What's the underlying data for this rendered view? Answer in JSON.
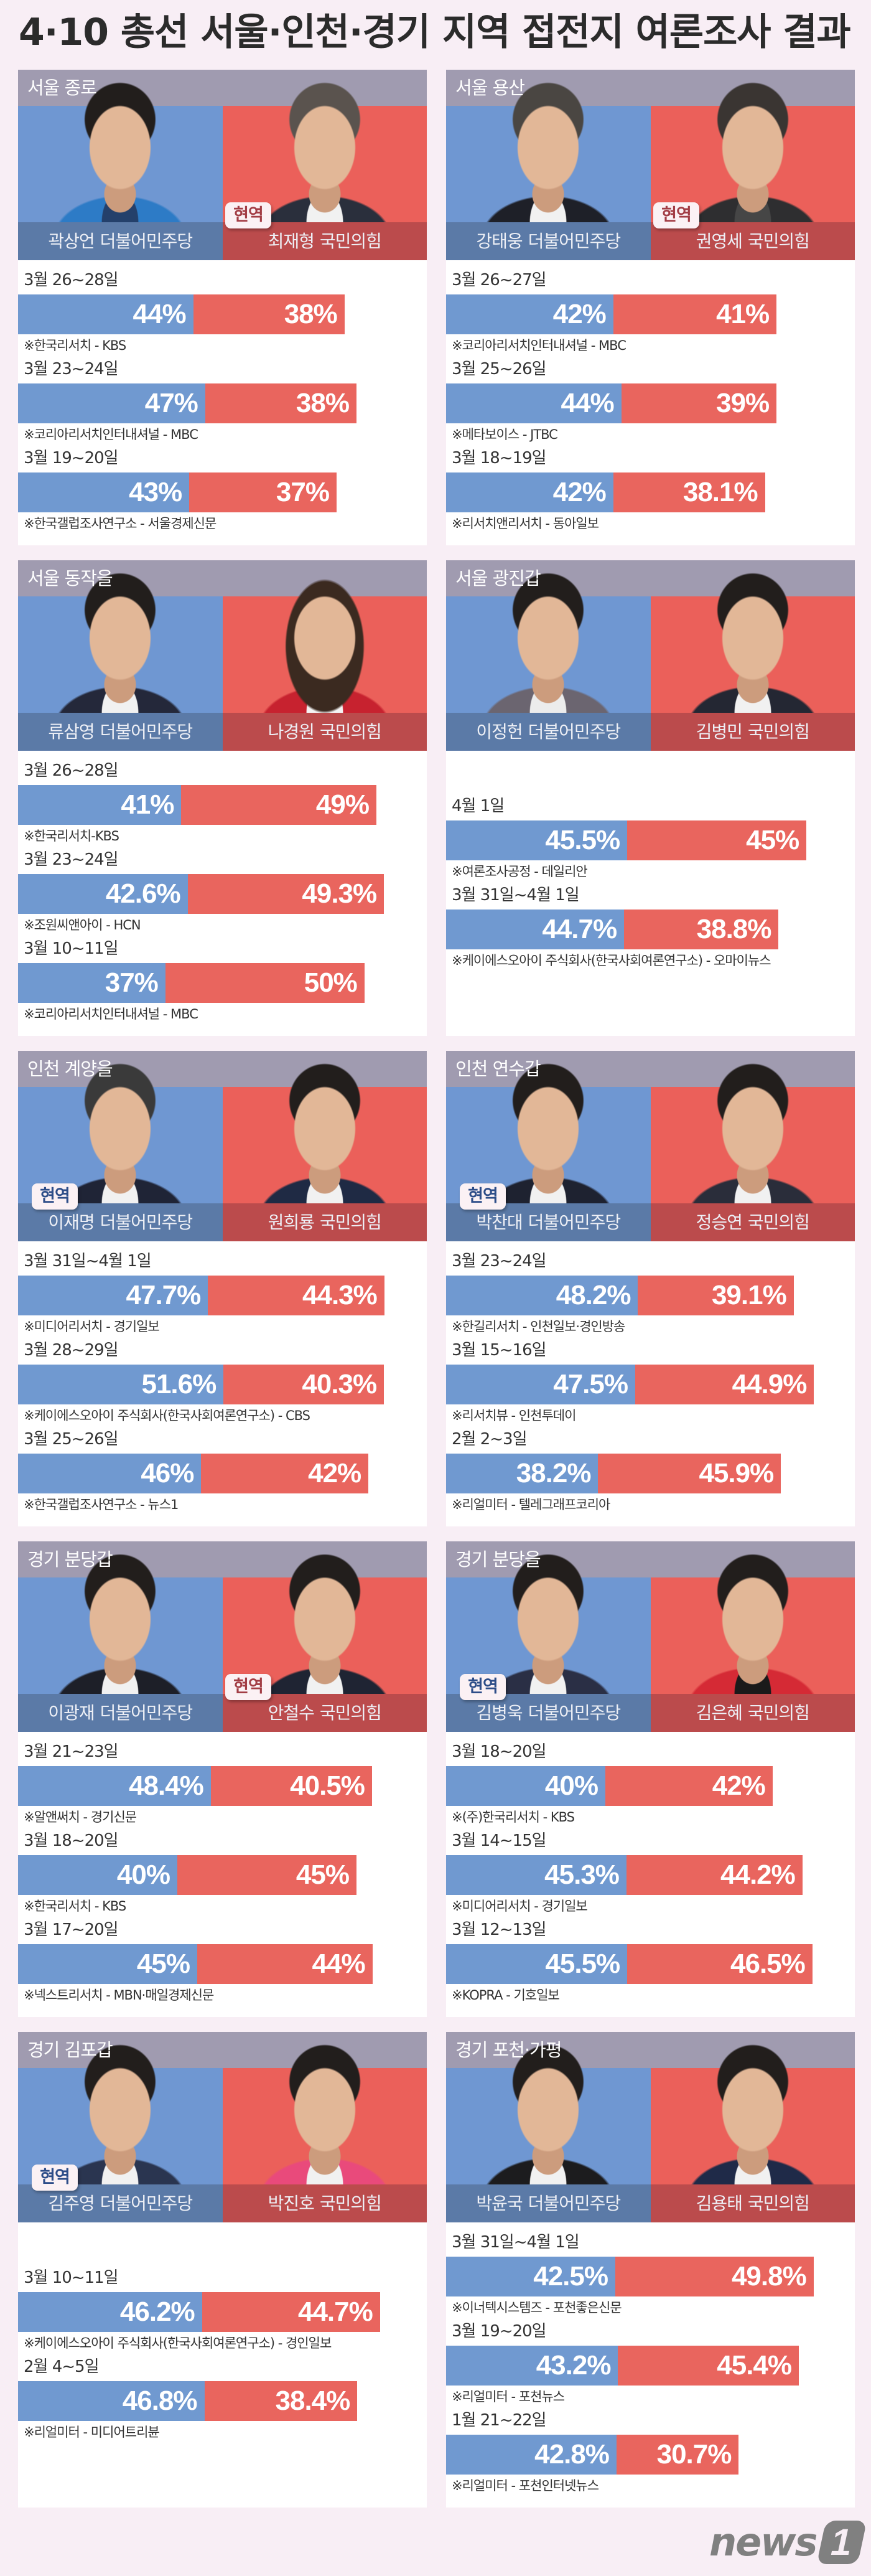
{
  "title": "4·10 총선 서울·인천·경기 지역 접전지 여론조사 결과",
  "badge_label": "현역",
  "logo": {
    "wordmark": "news",
    "numeral": "1"
  },
  "chart_data": [
    {
      "type": "bar",
      "orientation": "horizontal-stacked",
      "title": "서울 종로",
      "categories": [
        "3월 26~28일",
        "3월 23~24일",
        "3월 19~20일"
      ],
      "series": [
        {
          "name": "곽상언 더불어민주당",
          "candidate": "곽상언",
          "party": "더불어민주당",
          "incumbent": false,
          "color": "#7099d0",
          "values": [
            44,
            47,
            43
          ],
          "labels": [
            "44%",
            "47%",
            "43%"
          ]
        },
        {
          "name": "최재형 국민의힘",
          "candidate": "최재형",
          "party": "국민의힘",
          "incumbent": true,
          "color": "#e9655e",
          "values": [
            38,
            38,
            37
          ],
          "labels": [
            "38%",
            "38%",
            "37%"
          ]
        }
      ],
      "sources": [
        "※한국리서치 - KBS",
        "※코리아리서치인터내셔널 - MBC",
        "※한국갤럽조사연구소 - 서울경제신문"
      ]
    },
    {
      "type": "bar",
      "orientation": "horizontal-stacked",
      "title": "서울 용산",
      "categories": [
        "3월 26~27일",
        "3월 25~26일",
        "3월 18~19일"
      ],
      "series": [
        {
          "name": "강태웅 더불어민주당",
          "candidate": "강태웅",
          "party": "더불어민주당",
          "incumbent": false,
          "color": "#7099d0",
          "values": [
            42,
            44,
            42
          ],
          "labels": [
            "42%",
            "44%",
            "42%"
          ]
        },
        {
          "name": "권영세 국민의힘",
          "candidate": "권영세",
          "party": "국민의힘",
          "incumbent": true,
          "color": "#e9655e",
          "values": [
            41,
            39,
            38.1
          ],
          "labels": [
            "41%",
            "39%",
            "38.1%"
          ]
        }
      ],
      "sources": [
        "※코리아리서치인터내셔널 - MBC",
        "※메타보이스 - JTBC",
        "※리서치앤리서치 - 동아일보"
      ]
    },
    {
      "type": "bar",
      "orientation": "horizontal-stacked",
      "title": "서울 동작을",
      "categories": [
        "3월 26~28일",
        "3월 23~24일",
        "3월 10~11일"
      ],
      "series": [
        {
          "name": "류삼영 더불어민주당",
          "candidate": "류삼영",
          "party": "더불어민주당",
          "incumbent": false,
          "color": "#7099d0",
          "values": [
            41,
            42.6,
            37
          ],
          "labels": [
            "41%",
            "42.6%",
            "37%"
          ]
        },
        {
          "name": "나경원 국민의힘",
          "candidate": "나경원",
          "party": "국민의힘",
          "incumbent": false,
          "color": "#e9655e",
          "values": [
            49,
            49.3,
            50
          ],
          "labels": [
            "49%",
            "49.3%",
            "50%"
          ]
        }
      ],
      "sources": [
        "※한국리서치-KBS",
        "※조원씨앤아이 - HCN",
        "※코리아리서치인터내셔널 - MBC"
      ]
    },
    {
      "type": "bar",
      "orientation": "horizontal-stacked",
      "title": "서울 광진갑",
      "categories": [
        "4월 1일",
        "3월 31일~4월 1일"
      ],
      "series": [
        {
          "name": "이정헌 더불어민주당",
          "candidate": "이정헌",
          "party": "더불어민주당",
          "incumbent": false,
          "color": "#7099d0",
          "values": [
            45.5,
            44.7
          ],
          "labels": [
            "45.5%",
            "44.7%"
          ]
        },
        {
          "name": "김병민 국민의힘",
          "candidate": "김병민",
          "party": "국민의힘",
          "incumbent": false,
          "color": "#e9655e",
          "values": [
            45,
            38.8
          ],
          "labels": [
            "45%",
            "38.8%"
          ]
        }
      ],
      "sources": [
        "※여론조사공정 - 데일리안",
        "※케이에스오아이 주식회사(한국사회여론연구소) - 오마이뉴스"
      ]
    },
    {
      "type": "bar",
      "orientation": "horizontal-stacked",
      "title": "인천 계양을",
      "categories": [
        "3월 31일~4월 1일",
        "3월 28~29일",
        "3월 25~26일"
      ],
      "series": [
        {
          "name": "이재명 더불어민주당",
          "candidate": "이재명",
          "party": "더불어민주당",
          "incumbent": true,
          "color": "#7099d0",
          "values": [
            47.7,
            51.6,
            46
          ],
          "labels": [
            "47.7%",
            "51.6%",
            "46%"
          ]
        },
        {
          "name": "원희룡 국민의힘",
          "candidate": "원희룡",
          "party": "국민의힘",
          "incumbent": false,
          "color": "#e9655e",
          "values": [
            44.3,
            40.3,
            42
          ],
          "labels": [
            "44.3%",
            "40.3%",
            "42%"
          ]
        }
      ],
      "sources": [
        "※미디어리서치 - 경기일보",
        "※케이에스오아이 주식회사(한국사회여론연구소) - CBS",
        "※한국갤럽조사연구소 - 뉴스1"
      ]
    },
    {
      "type": "bar",
      "orientation": "horizontal-stacked",
      "title": "인천 연수갑",
      "categories": [
        "3월 23~24일",
        "3월 15~16일",
        "2월 2~3일"
      ],
      "series": [
        {
          "name": "박찬대 더불어민주당",
          "candidate": "박찬대",
          "party": "더불어민주당",
          "incumbent": true,
          "color": "#7099d0",
          "values": [
            48.2,
            47.5,
            38.2
          ],
          "labels": [
            "48.2%",
            "47.5%",
            "38.2%"
          ]
        },
        {
          "name": "정승연 국민의힘",
          "candidate": "정승연",
          "party": "국민의힘",
          "incumbent": false,
          "color": "#e9655e",
          "values": [
            39.1,
            44.9,
            45.9
          ],
          "labels": [
            "39.1%",
            "44.9%",
            "45.9%"
          ]
        }
      ],
      "sources": [
        "※한길리서치 - 인천일보·경인방송",
        "※리서치뷰 - 인천투데이",
        "※리얼미터 - 텔레그래프코리아"
      ]
    },
    {
      "type": "bar",
      "orientation": "horizontal-stacked",
      "title": "경기 분당갑",
      "categories": [
        "3월 21~23일",
        "3월 18~20일",
        "3월 17~20일"
      ],
      "series": [
        {
          "name": "이광재 더불어민주당",
          "candidate": "이광재",
          "party": "더불어민주당",
          "incumbent": false,
          "color": "#7099d0",
          "values": [
            48.4,
            40,
            45
          ],
          "labels": [
            "48.4%",
            "40%",
            "45%"
          ]
        },
        {
          "name": "안철수 국민의힘",
          "candidate": "안철수",
          "party": "국민의힘",
          "incumbent": true,
          "color": "#e9655e",
          "values": [
            40.5,
            45,
            44
          ],
          "labels": [
            "40.5%",
            "45%",
            "44%"
          ]
        }
      ],
      "sources": [
        "※알앤써치 - 경기신문",
        "※한국리서치 - KBS",
        "※넥스트리서치 - MBN·매일경제신문"
      ]
    },
    {
      "type": "bar",
      "orientation": "horizontal-stacked",
      "title": "경기 분당을",
      "categories": [
        "3월 18~20일",
        "3월 14~15일",
        "3월 12~13일"
      ],
      "series": [
        {
          "name": "김병욱 더불어민주당",
          "candidate": "김병욱",
          "party": "더불어민주당",
          "incumbent": true,
          "color": "#7099d0",
          "values": [
            40,
            45.3,
            45.5
          ],
          "labels": [
            "40%",
            "45.3%",
            "45.5%"
          ]
        },
        {
          "name": "김은혜 국민의힘",
          "candidate": "김은혜",
          "party": "국민의힘",
          "incumbent": false,
          "color": "#e9655e",
          "values": [
            42,
            44.2,
            46.5
          ],
          "labels": [
            "42%",
            "44.2%",
            "46.5%"
          ]
        }
      ],
      "sources": [
        "※(주)한국리서치 - KBS",
        "※미디어리서치 - 경기일보",
        "※KOPRA - 기호일보"
      ]
    },
    {
      "type": "bar",
      "orientation": "horizontal-stacked",
      "title": "경기 김포갑",
      "categories": [
        "3월 10~11일",
        "2월 4~5일"
      ],
      "series": [
        {
          "name": "김주영 더불어민주당",
          "candidate": "김주영",
          "party": "더불어민주당",
          "incumbent": true,
          "color": "#7099d0",
          "values": [
            46.2,
            46.8
          ],
          "labels": [
            "46.2%",
            "46.8%"
          ]
        },
        {
          "name": "박진호 국민의힘",
          "candidate": "박진호",
          "party": "국민의힘",
          "incumbent": false,
          "color": "#e9655e",
          "values": [
            44.7,
            38.4
          ],
          "labels": [
            "44.7%",
            "38.4%"
          ]
        }
      ],
      "sources": [
        "※케이에스오아이 주식회사(한국사회여론연구소) - 경인일보",
        "※리얼미터 - 미디어트리뷴"
      ]
    },
    {
      "type": "bar",
      "orientation": "horizontal-stacked",
      "title": "경기 포천·가평",
      "categories": [
        "3월 31일~4월 1일",
        "3월 19~20일",
        "1월 21~22일"
      ],
      "series": [
        {
          "name": "박윤국 더불어민주당",
          "candidate": "박윤국",
          "party": "더불어민주당",
          "incumbent": false,
          "color": "#7099d0",
          "values": [
            42.5,
            43.2,
            42.8
          ],
          "labels": [
            "42.5%",
            "43.2%",
            "42.8%"
          ]
        },
        {
          "name": "김용태 국민의힘",
          "candidate": "김용태",
          "party": "국민의힘",
          "incumbent": false,
          "color": "#e9655e",
          "values": [
            49.8,
            45.4,
            30.7
          ],
          "labels": [
            "49.8%",
            "45.4%",
            "30.7%"
          ]
        }
      ],
      "sources": [
        "※이너텍시스템즈 - 포천좋은신문",
        "※리얼미터 - 포천뉴스",
        "※리얼미터 - 포천인터넷뉴스"
      ]
    }
  ]
}
